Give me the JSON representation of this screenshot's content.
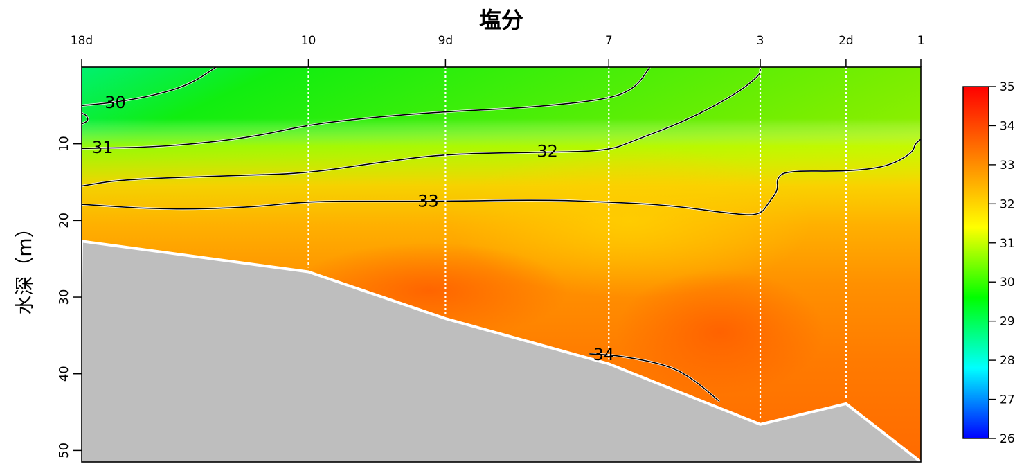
{
  "chart_data": {
    "type": "heatmap",
    "title": "塩分",
    "xlabel": "",
    "ylabel": "水深（m）",
    "stations": [
      {
        "label": "18d",
        "pos": 0.0
      },
      {
        "label": "10",
        "pos": 0.2702
      },
      {
        "label": "9d",
        "pos": 0.4335
      },
      {
        "label": "7",
        "pos": 0.6281
      },
      {
        "label": "3",
        "pos": 0.8086
      },
      {
        "label": "2d",
        "pos": 0.9108
      },
      {
        "label": "1",
        "pos": 1.0
      }
    ],
    "y_ticks": [
      10,
      20,
      30,
      40,
      50
    ],
    "ylim": [
      0,
      51.5
    ],
    "y_reversed": true,
    "bottom_depth": [
      {
        "pos": 0.0,
        "depth": 22.7
      },
      {
        "pos": 0.2702,
        "depth": 26.7
      },
      {
        "pos": 0.4335,
        "depth": 32.8
      },
      {
        "pos": 0.6281,
        "depth": 38.7
      },
      {
        "pos": 0.8086,
        "depth": 46.6
      },
      {
        "pos": 0.9108,
        "depth": 43.9
      },
      {
        "pos": 1.0,
        "depth": 51.5
      }
    ],
    "colorbar": {
      "min": 26,
      "max": 35,
      "ticks": [
        26,
        27,
        28,
        29,
        30,
        31,
        32,
        33,
        34,
        35
      ],
      "colors": [
        "#0000ff",
        "#00ffff",
        "#00ff00",
        "#ffff00",
        "#ff8000",
        "#ff0000"
      ]
    },
    "contours": [
      {
        "level": "30",
        "label_at": {
          "pos": 0.04,
          "depth": 4.6
        },
        "points": [
          [
            0.0,
            5.0
          ],
          [
            0.04,
            4.6
          ],
          [
            0.09,
            3.6
          ],
          [
            0.13,
            2.2
          ],
          [
            0.16,
            0.0
          ]
        ]
      },
      {
        "level": "30",
        "label_at": null,
        "points": [
          [
            0.0,
            6.0
          ],
          [
            0.006,
            6.3
          ],
          [
            0.008,
            7.0
          ],
          [
            0.0,
            7.4
          ]
        ]
      },
      {
        "level": "31",
        "label_at": {
          "pos": 0.025,
          "depth": 10.5
        },
        "points": [
          [
            0.0,
            10.6
          ],
          [
            0.1,
            10.4
          ],
          [
            0.2,
            9.2
          ],
          [
            0.2702,
            7.5
          ],
          [
            0.35,
            6.5
          ],
          [
            0.4335,
            5.8
          ],
          [
            0.53,
            5.3
          ],
          [
            0.6281,
            4.2
          ],
          [
            0.66,
            2.7
          ],
          [
            0.677,
            0.0
          ]
        ]
      },
      {
        "level": "32",
        "label_at": {
          "pos": 0.555,
          "depth": 11.0
        },
        "points": [
          [
            0.0,
            15.5
          ],
          [
            0.05,
            14.6
          ],
          [
            0.2,
            14.1
          ],
          [
            0.2702,
            13.8
          ],
          [
            0.35,
            12.5
          ],
          [
            0.4335,
            11.3
          ],
          [
            0.555,
            11.1
          ],
          [
            0.6281,
            10.9
          ],
          [
            0.66,
            9.5
          ],
          [
            0.72,
            7.0
          ],
          [
            0.78,
            3.5
          ],
          [
            0.8086,
            1.0
          ],
          [
            0.8086,
            0.2
          ]
        ]
      },
      {
        "level": "33",
        "label_at": {
          "pos": 0.413,
          "depth": 17.5
        },
        "points": [
          [
            0.0,
            17.9
          ],
          [
            0.1,
            18.6
          ],
          [
            0.2,
            18.3
          ],
          [
            0.2702,
            17.5
          ],
          [
            0.35,
            17.5
          ],
          [
            0.4335,
            17.5
          ],
          [
            0.55,
            17.3
          ],
          [
            0.6281,
            17.6
          ],
          [
            0.7,
            18.0
          ],
          [
            0.78,
            19.2
          ],
          [
            0.8086,
            19.3
          ],
          [
            0.82,
            17.5
          ],
          [
            0.83,
            16.0
          ],
          [
            0.828,
            14.5
          ],
          [
            0.84,
            13.5
          ],
          [
            0.9108,
            13.6
          ],
          [
            0.96,
            13.0
          ],
          [
            0.99,
            11.2
          ],
          [
            0.993,
            10.0
          ],
          [
            1.0,
            9.4
          ]
        ]
      },
      {
        "level": "34",
        "label_at": {
          "pos": 0.622,
          "depth": 37.5
        },
        "points": [
          [
            0.605,
            37.4
          ],
          [
            0.64,
            37.6
          ],
          [
            0.7,
            38.9
          ],
          [
            0.73,
            40.8
          ],
          [
            0.76,
            43.6
          ]
        ]
      }
    ]
  }
}
